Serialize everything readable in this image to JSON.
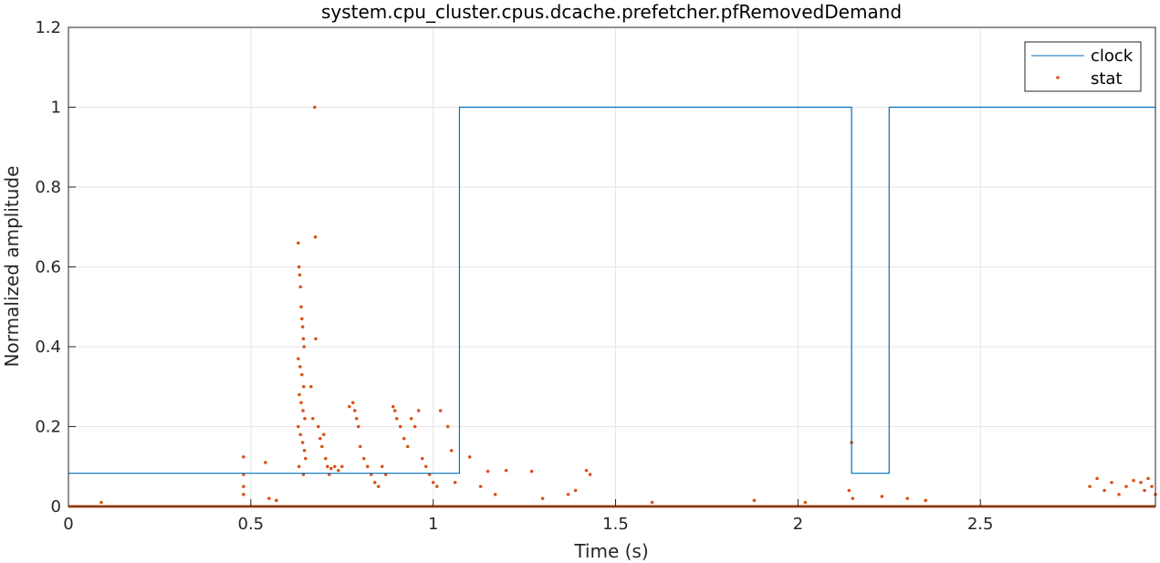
{
  "chart_data": {
    "type": "line",
    "title": "system.cpu_cluster.cpus.dcache.prefetcher.pfRemovedDemand",
    "xlabel": "Time (s)",
    "ylabel": "Normalized amplitude",
    "xlim": [
      0,
      2.98
    ],
    "ylim": [
      0,
      1.2
    ],
    "xticks": [
      0,
      0.5,
      1,
      1.5,
      2,
      2.5
    ],
    "xtick_labels": [
      "0",
      "0.5",
      "1",
      "1.5",
      "2",
      "2.5"
    ],
    "yticks": [
      0,
      0.2,
      0.4,
      0.6,
      0.8,
      1.0,
      1.2
    ],
    "ytick_labels": [
      "0",
      "0.2",
      "0.4",
      "0.6",
      "0.8",
      "1",
      "1.2"
    ],
    "grid": true,
    "legend_position": "top-right",
    "series": [
      {
        "name": "clock",
        "style": "step-line",
        "color": "#0072BD",
        "x": [
          0,
          1.072,
          1.072,
          2.147,
          2.147,
          2.25,
          2.25,
          2.98
        ],
        "y": [
          0.083,
          0.083,
          1.0,
          1.0,
          0.083,
          0.083,
          1.0,
          1.0
        ]
      },
      {
        "name": "stat",
        "style": "markers",
        "color": "#D95319",
        "baseline": 0,
        "points": [
          [
            0.48,
            0.124
          ],
          [
            0.48,
            0.08
          ],
          [
            0.48,
            0.05
          ],
          [
            0.48,
            0.03
          ],
          [
            0.54,
            0.11
          ],
          [
            0.55,
            0.02
          ],
          [
            0.57,
            0.015
          ],
          [
            0.09,
            0.01
          ],
          [
            0.63,
            0.66
          ],
          [
            0.632,
            0.6
          ],
          [
            0.634,
            0.58
          ],
          [
            0.636,
            0.55
          ],
          [
            0.638,
            0.5
          ],
          [
            0.64,
            0.47
          ],
          [
            0.642,
            0.45
          ],
          [
            0.644,
            0.42
          ],
          [
            0.646,
            0.4
          ],
          [
            0.63,
            0.37
          ],
          [
            0.635,
            0.35
          ],
          [
            0.64,
            0.33
          ],
          [
            0.645,
            0.3
          ],
          [
            0.633,
            0.28
          ],
          [
            0.638,
            0.26
          ],
          [
            0.643,
            0.24
          ],
          [
            0.648,
            0.22
          ],
          [
            0.63,
            0.2
          ],
          [
            0.636,
            0.18
          ],
          [
            0.642,
            0.16
          ],
          [
            0.647,
            0.14
          ],
          [
            0.65,
            0.12
          ],
          [
            0.632,
            0.1
          ],
          [
            0.644,
            0.08
          ],
          [
            0.675,
            1.0
          ],
          [
            0.677,
            0.675
          ],
          [
            0.678,
            0.42
          ],
          [
            0.665,
            0.3
          ],
          [
            0.67,
            0.22
          ],
          [
            0.685,
            0.2
          ],
          [
            0.69,
            0.17
          ],
          [
            0.695,
            0.15
          ],
          [
            0.7,
            0.18
          ],
          [
            0.705,
            0.12
          ],
          [
            0.71,
            0.1
          ],
          [
            0.715,
            0.08
          ],
          [
            0.72,
            0.095
          ],
          [
            0.73,
            0.1
          ],
          [
            0.74,
            0.09
          ],
          [
            0.75,
            0.1
          ],
          [
            0.77,
            0.25
          ],
          [
            0.78,
            0.26
          ],
          [
            0.785,
            0.24
          ],
          [
            0.79,
            0.22
          ],
          [
            0.795,
            0.2
          ],
          [
            0.8,
            0.15
          ],
          [
            0.81,
            0.12
          ],
          [
            0.82,
            0.1
          ],
          [
            0.83,
            0.08
          ],
          [
            0.84,
            0.06
          ],
          [
            0.85,
            0.05
          ],
          [
            0.86,
            0.1
          ],
          [
            0.87,
            0.08
          ],
          [
            0.89,
            0.25
          ],
          [
            0.895,
            0.24
          ],
          [
            0.9,
            0.22
          ],
          [
            0.91,
            0.2
          ],
          [
            0.92,
            0.17
          ],
          [
            0.93,
            0.15
          ],
          [
            0.94,
            0.22
          ],
          [
            0.95,
            0.2
          ],
          [
            0.96,
            0.24
          ],
          [
            0.97,
            0.12
          ],
          [
            0.98,
            0.1
          ],
          [
            0.99,
            0.08
          ],
          [
            1.0,
            0.06
          ],
          [
            1.01,
            0.05
          ],
          [
            1.02,
            0.24
          ],
          [
            1.04,
            0.2
          ],
          [
            1.05,
            0.14
          ],
          [
            1.06,
            0.06
          ],
          [
            1.1,
            0.124
          ],
          [
            1.13,
            0.05
          ],
          [
            1.15,
            0.088
          ],
          [
            1.17,
            0.03
          ],
          [
            1.2,
            0.09
          ],
          [
            1.27,
            0.088
          ],
          [
            1.3,
            0.02
          ],
          [
            1.37,
            0.03
          ],
          [
            1.39,
            0.04
          ],
          [
            1.42,
            0.09
          ],
          [
            1.43,
            0.08
          ],
          [
            1.6,
            0.01
          ],
          [
            1.88,
            0.015
          ],
          [
            2.02,
            0.01
          ],
          [
            2.14,
            0.04
          ],
          [
            2.147,
            0.16
          ],
          [
            2.15,
            0.02
          ],
          [
            2.23,
            0.025
          ],
          [
            2.3,
            0.02
          ],
          [
            2.35,
            0.015
          ],
          [
            2.8,
            0.05
          ],
          [
            2.82,
            0.07
          ],
          [
            2.84,
            0.04
          ],
          [
            2.86,
            0.06
          ],
          [
            2.88,
            0.03
          ],
          [
            2.9,
            0.05
          ],
          [
            2.92,
            0.065
          ],
          [
            2.94,
            0.06
          ],
          [
            2.95,
            0.04
          ],
          [
            2.96,
            0.07
          ],
          [
            2.97,
            0.05
          ],
          [
            2.98,
            0.03
          ]
        ]
      }
    ]
  }
}
